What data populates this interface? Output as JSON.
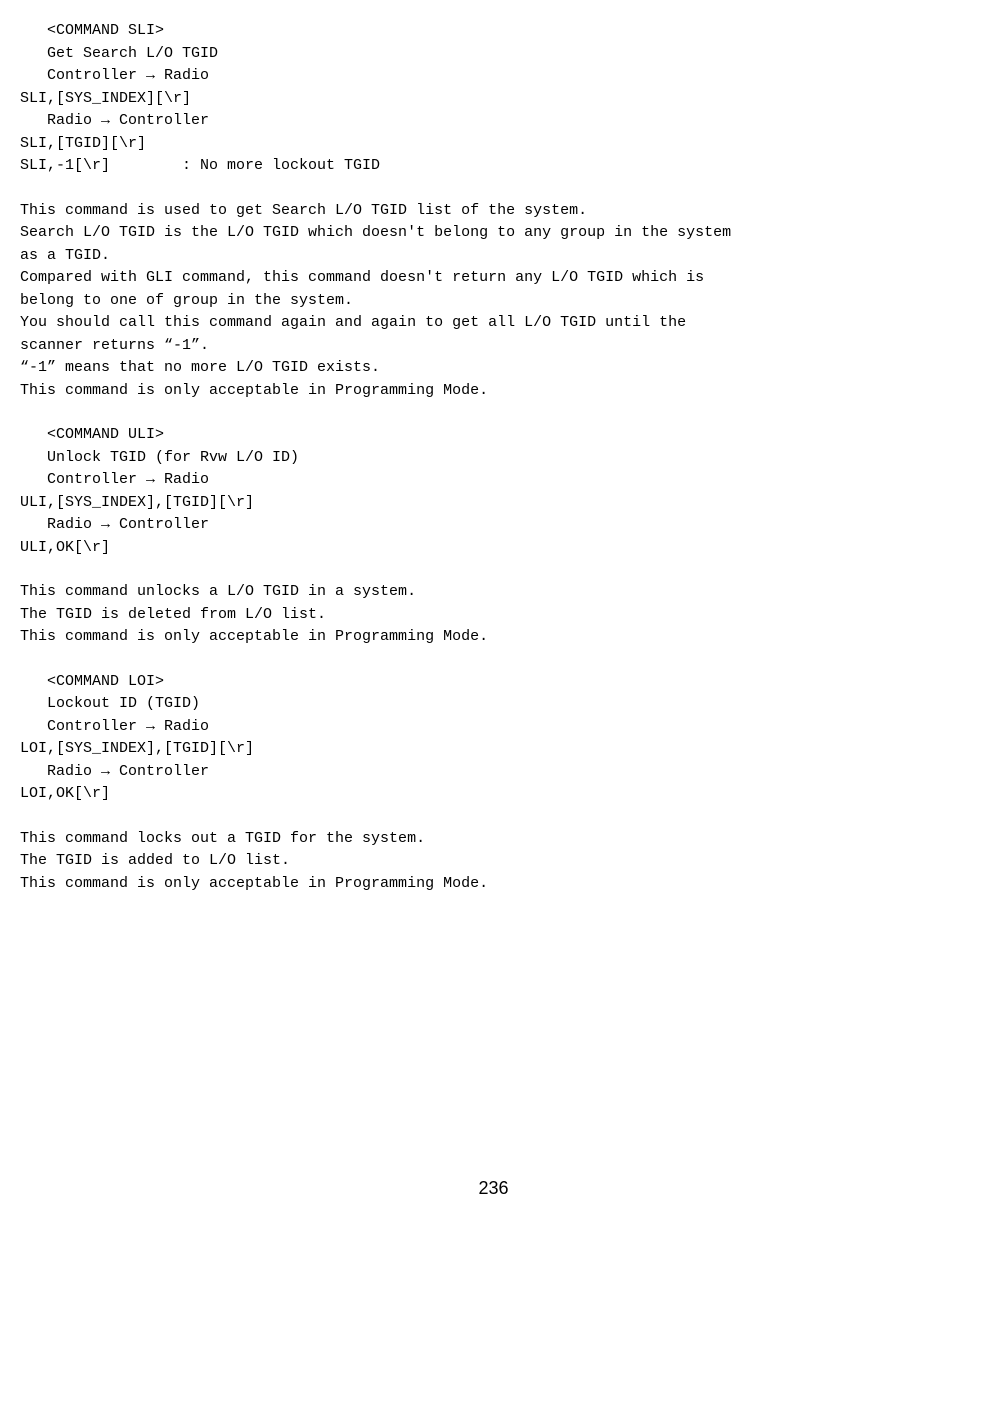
{
  "sli": {
    "header": "<COMMAND SLI>",
    "title": "Get Search L/O TGID",
    "ctr_label": "Controller → Radio",
    "ctr_cmd": "SLI,[SYS_INDEX][\\r]",
    "rtc_label": "Radio → Controller",
    "rtc_cmd1": "SLI,[TGID][\\r]",
    "rtc_cmd2": "SLI,-1[\\r]        : No more lockout TGID",
    "desc1": "This command is used to get Search L/O TGID list of the system.",
    "desc2": "Search L/O TGID is the L/O TGID which doesn't belong to any group in the system",
    "desc3": "as a TGID.",
    "desc4": "Compared with GLI command, this command doesn't return any L/O TGID which is",
    "desc5": "belong to one of group in the system.",
    "desc6": "You should call this command again and again to get all L/O TGID until the",
    "desc7": "scanner returns “-1”.",
    "desc8": "“-1” means that no more L/O TGID exists.",
    "desc9": "This command is only acceptable in Programming Mode."
  },
  "uli": {
    "header": "<COMMAND ULI>",
    "title": "Unlock TGID (for Rvw L/O ID)",
    "ctr_label": "Controller → Radio",
    "ctr_cmd": "ULI,[SYS_INDEX],[TGID][\\r]",
    "rtc_label": "Radio → Controller",
    "rtc_cmd": "ULI,OK[\\r]",
    "desc1": "This command unlocks a L/O TGID in a system.",
    "desc2": "The TGID is deleted from L/O list.",
    "desc3": "This command is only acceptable in Programming Mode."
  },
  "loi": {
    "header": "<COMMAND LOI>",
    "title": "Lockout ID (TGID)",
    "ctr_label": "Controller → Radio",
    "ctr_cmd": "LOI,[SYS_INDEX],[TGID][\\r]",
    "rtc_label": "Radio → Controller",
    "rtc_cmd": "LOI,OK[\\r]",
    "desc1": "This command locks out a TGID for the system.",
    "desc2": "The TGID is added to L/O list.",
    "desc3": "This command is only acceptable in Programming Mode."
  },
  "page_number": "236"
}
